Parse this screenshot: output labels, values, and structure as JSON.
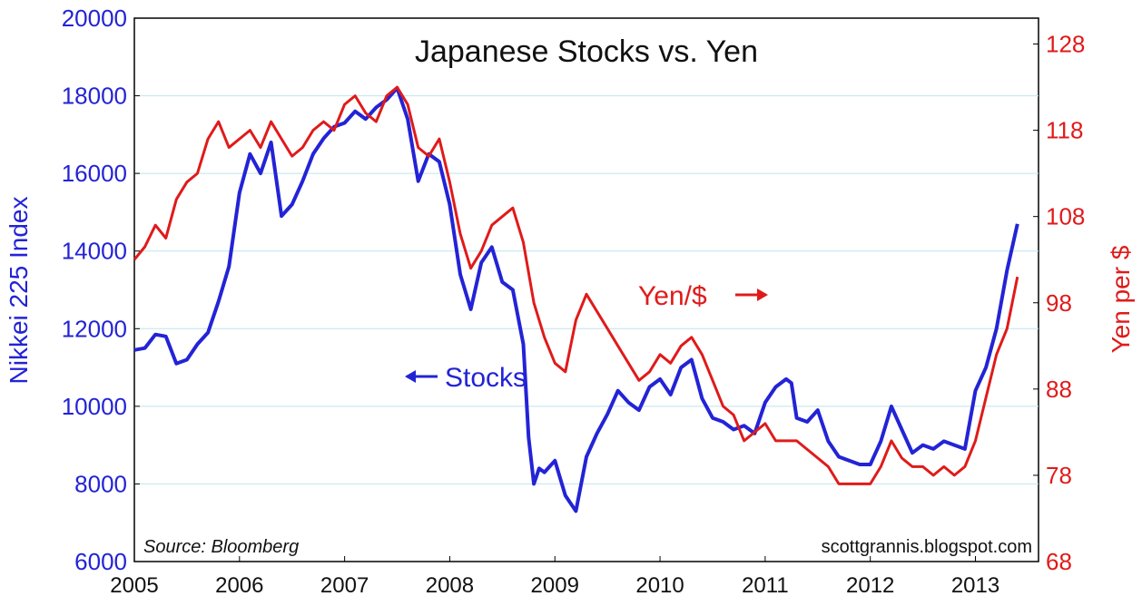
{
  "chart_data": {
    "type": "line",
    "title": "Japanese Stocks vs. Yen",
    "ylabel": "Nikkei 225 Index",
    "y2label": "Yen per $",
    "source": "Source: Bloomberg",
    "credit": "scottgrannis.blogspot.com",
    "annotations": {
      "stocks": "Stocks",
      "yen": "Yen/$"
    },
    "xlim": [
      2005,
      2013.6
    ],
    "ylim": [
      6000,
      20000
    ],
    "y2lim": [
      68,
      131
    ],
    "grid": true,
    "x_ticks": [
      "2005",
      "2006",
      "2007",
      "2008",
      "2009",
      "2010",
      "2011",
      "2012",
      "2013"
    ],
    "y_ticks": [
      "6000",
      "8000",
      "10000",
      "12000",
      "14000",
      "16000",
      "18000",
      "20000"
    ],
    "y2_ticks": [
      "68",
      "78",
      "88",
      "98",
      "108",
      "118",
      "128"
    ],
    "colors": {
      "stocks": "#2323d6",
      "yen": "#e01a1a"
    },
    "series": [
      {
        "name": "Stocks",
        "axis": "left",
        "x": [
          2005.0,
          2005.1,
          2005.2,
          2005.3,
          2005.4,
          2005.5,
          2005.6,
          2005.7,
          2005.8,
          2005.9,
          2006.0,
          2006.1,
          2006.2,
          2006.3,
          2006.4,
          2006.5,
          2006.6,
          2006.7,
          2006.8,
          2006.9,
          2007.0,
          2007.1,
          2007.2,
          2007.3,
          2007.4,
          2007.5,
          2007.6,
          2007.7,
          2007.8,
          2007.9,
          2008.0,
          2008.1,
          2008.2,
          2008.3,
          2008.4,
          2008.5,
          2008.6,
          2008.7,
          2008.75,
          2008.8,
          2008.85,
          2008.9,
          2009.0,
          2009.1,
          2009.2,
          2009.3,
          2009.4,
          2009.5,
          2009.6,
          2009.7,
          2009.8,
          2009.9,
          2010.0,
          2010.1,
          2010.2,
          2010.3,
          2010.4,
          2010.5,
          2010.6,
          2010.7,
          2010.8,
          2010.9,
          2011.0,
          2011.1,
          2011.2,
          2011.25,
          2011.3,
          2011.4,
          2011.5,
          2011.6,
          2011.7,
          2011.8,
          2011.9,
          2012.0,
          2012.1,
          2012.2,
          2012.3,
          2012.4,
          2012.5,
          2012.6,
          2012.7,
          2012.8,
          2012.9,
          2013.0,
          2013.1,
          2013.2,
          2013.3,
          2013.4
        ],
        "values": [
          11450,
          11500,
          11850,
          11800,
          11100,
          11200,
          11600,
          11900,
          12700,
          13600,
          15500,
          16500,
          16000,
          16800,
          14900,
          15200,
          15800,
          16500,
          16900,
          17200,
          17300,
          17600,
          17400,
          17700,
          17900,
          18200,
          17400,
          15800,
          16500,
          16300,
          15200,
          13400,
          12500,
          13700,
          14100,
          13200,
          13000,
          11600,
          9200,
          8000,
          8400,
          8300,
          8600,
          7700,
          7300,
          8700,
          9300,
          9800,
          10400,
          10100,
          9900,
          10500,
          10700,
          10300,
          11000,
          11200,
          10200,
          9700,
          9600,
          9400,
          9500,
          9300,
          10100,
          10500,
          10700,
          10600,
          9700,
          9600,
          9900,
          9100,
          8700,
          8600,
          8500,
          8500,
          9100,
          10000,
          9400,
          8800,
          9000,
          8900,
          9100,
          9000,
          8900,
          10400,
          11000,
          12000,
          13500,
          14700
        ]
      },
      {
        "name": "Yen/$",
        "axis": "right",
        "x": [
          2005.0,
          2005.1,
          2005.2,
          2005.3,
          2005.4,
          2005.5,
          2005.6,
          2005.7,
          2005.8,
          2005.9,
          2006.0,
          2006.1,
          2006.2,
          2006.3,
          2006.4,
          2006.5,
          2006.6,
          2006.7,
          2006.8,
          2006.9,
          2007.0,
          2007.1,
          2007.2,
          2007.3,
          2007.4,
          2007.5,
          2007.6,
          2007.7,
          2007.8,
          2007.9,
          2008.0,
          2008.1,
          2008.2,
          2008.3,
          2008.4,
          2008.5,
          2008.6,
          2008.7,
          2008.8,
          2008.9,
          2009.0,
          2009.1,
          2009.2,
          2009.3,
          2009.4,
          2009.5,
          2009.6,
          2009.7,
          2009.8,
          2009.9,
          2010.0,
          2010.1,
          2010.2,
          2010.3,
          2010.4,
          2010.5,
          2010.6,
          2010.7,
          2010.8,
          2010.9,
          2011.0,
          2011.1,
          2011.2,
          2011.3,
          2011.4,
          2011.5,
          2011.6,
          2011.7,
          2011.8,
          2011.9,
          2012.0,
          2012.1,
          2012.2,
          2012.3,
          2012.4,
          2012.5,
          2012.6,
          2012.7,
          2012.8,
          2012.9,
          2013.0,
          2013.1,
          2013.2,
          2013.3,
          2013.4
        ],
        "values": [
          103,
          104.5,
          107,
          105.5,
          110,
          112,
          113,
          117,
          119,
          116,
          117,
          118,
          116,
          119,
          117,
          115,
          116,
          118,
          119,
          118,
          121,
          122,
          120,
          119,
          122,
          123,
          121,
          116,
          115,
          117,
          112,
          106,
          102,
          104,
          107,
          108,
          109,
          105,
          98,
          94,
          91,
          90,
          96,
          99,
          97,
          95,
          93,
          91,
          89,
          90,
          92,
          91,
          93,
          94,
          92,
          89,
          86,
          85,
          82,
          83,
          84,
          82,
          82,
          82,
          81,
          80,
          79,
          77,
          77,
          77,
          77,
          79,
          82,
          80,
          79,
          79,
          78,
          79,
          78,
          79,
          82,
          87,
          92,
          95,
          101
        ]
      }
    ]
  }
}
